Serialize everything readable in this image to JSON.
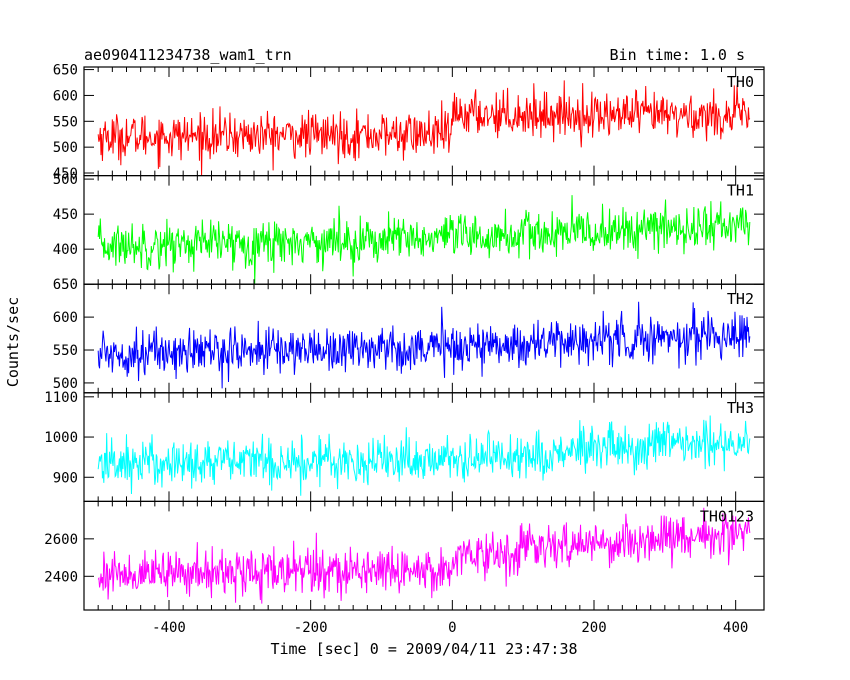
{
  "header": {
    "left": "ae090411234738_wam1_trn",
    "right": "Bin time: 1.0 s"
  },
  "chart_data": {
    "type": "line",
    "xlabel": "Time [sec] 0 = 2009/04/11 23:47:38",
    "ylabel": "Counts/sec",
    "xlim": [
      -520,
      440
    ],
    "xticks": [
      -400,
      -200,
      0,
      200,
      400
    ],
    "xdata_range": [
      -500,
      420
    ],
    "bin_time_s": 1.0,
    "panels": [
      {
        "name": "TH0",
        "color": "#ff0000",
        "ylim": [
          445,
          655
        ],
        "yticks": [
          450,
          500,
          550,
          600,
          650
        ],
        "series_profile": {
          "x": [
            -500,
            0,
            1,
            420
          ],
          "mean": [
            520,
            525,
            565,
            560
          ]
        },
        "noise_amplitude": 40
      },
      {
        "name": "TH1",
        "color": "#00ff00",
        "ylim": [
          350,
          505
        ],
        "yticks": [
          400,
          450,
          500
        ],
        "series_profile": {
          "x": [
            -500,
            0,
            420
          ],
          "mean": [
            405,
            415,
            435
          ]
        },
        "noise_amplitude": 30
      },
      {
        "name": "TH2",
        "color": "#0000ff",
        "ylim": [
          485,
          650
        ],
        "yticks": [
          500,
          550,
          600,
          650
        ],
        "series_profile": {
          "x": [
            -500,
            0,
            420
          ],
          "mean": [
            545,
            555,
            575
          ]
        },
        "noise_amplitude": 32
      },
      {
        "name": "TH3",
        "color": "#00ffff",
        "ylim": [
          840,
          1110
        ],
        "yticks": [
          900,
          1000,
          1100
        ],
        "series_profile": {
          "x": [
            -500,
            0,
            420
          ],
          "mean": [
            935,
            945,
            990
          ]
        },
        "noise_amplitude": 55
      },
      {
        "name": "TH0123",
        "color": "#ff00ff",
        "ylim": [
          2220,
          2800
        ],
        "yticks": [
          2400,
          2600
        ],
        "series_profile": {
          "x": [
            -500,
            0,
            1,
            420
          ],
          "mean": [
            2410,
            2440,
            2510,
            2640
          ]
        },
        "noise_amplitude": 110
      }
    ]
  }
}
